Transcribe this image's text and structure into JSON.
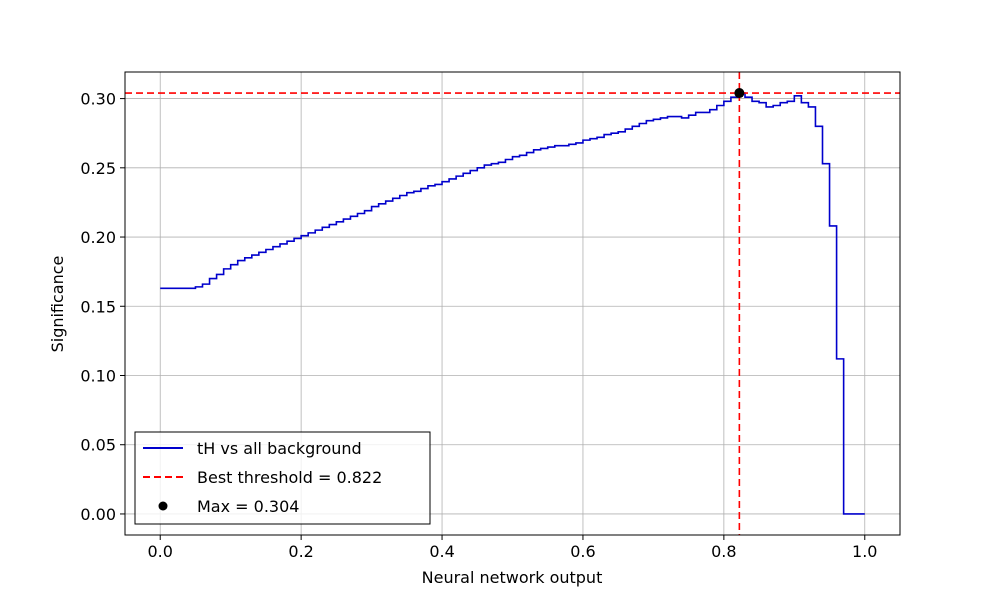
{
  "chart_data": {
    "type": "line",
    "title": "",
    "xlabel": "Neural network output",
    "ylabel": "Significance",
    "xlim": [
      -0.05,
      1.05
    ],
    "ylim": [
      -0.0152,
      0.3192
    ],
    "xticks": [
      0.0,
      0.2,
      0.4,
      0.6,
      0.8,
      1.0
    ],
    "xtick_labels": [
      "0.0",
      "0.2",
      "0.4",
      "0.6",
      "0.8",
      "1.0"
    ],
    "yticks": [
      0.0,
      0.05,
      0.1,
      0.15,
      0.2,
      0.25,
      0.3
    ],
    "ytick_labels": [
      "0.00",
      "0.05",
      "0.10",
      "0.15",
      "0.20",
      "0.25",
      "0.30"
    ],
    "grid": true,
    "legend_position": "bottom-left",
    "series": [
      {
        "name": "tH vs all background",
        "kind": "step",
        "color": "#0000cc",
        "x": [
          0.0,
          0.01,
          0.02,
          0.03,
          0.04,
          0.05,
          0.06,
          0.07,
          0.08,
          0.09,
          0.1,
          0.11,
          0.12,
          0.13,
          0.14,
          0.15,
          0.16,
          0.17,
          0.18,
          0.19,
          0.2,
          0.21,
          0.22,
          0.23,
          0.24,
          0.25,
          0.26,
          0.27,
          0.28,
          0.29,
          0.3,
          0.31,
          0.32,
          0.33,
          0.34,
          0.35,
          0.36,
          0.37,
          0.38,
          0.39,
          0.4,
          0.41,
          0.42,
          0.43,
          0.44,
          0.45,
          0.46,
          0.47,
          0.48,
          0.49,
          0.5,
          0.51,
          0.52,
          0.53,
          0.54,
          0.55,
          0.56,
          0.57,
          0.58,
          0.59,
          0.6,
          0.61,
          0.62,
          0.63,
          0.64,
          0.65,
          0.66,
          0.67,
          0.68,
          0.69,
          0.7,
          0.71,
          0.72,
          0.73,
          0.74,
          0.75,
          0.76,
          0.77,
          0.78,
          0.79,
          0.8,
          0.81,
          0.82,
          0.83,
          0.84,
          0.85,
          0.86,
          0.87,
          0.88,
          0.89,
          0.9,
          0.91,
          0.92,
          0.93,
          0.94,
          0.95,
          0.96,
          0.97,
          0.98,
          0.99,
          1.0
        ],
        "y": [
          0.163,
          0.163,
          0.163,
          0.163,
          0.163,
          0.164,
          0.166,
          0.17,
          0.173,
          0.177,
          0.18,
          0.183,
          0.185,
          0.187,
          0.189,
          0.191,
          0.193,
          0.195,
          0.197,
          0.199,
          0.201,
          0.203,
          0.205,
          0.207,
          0.209,
          0.211,
          0.213,
          0.215,
          0.217,
          0.219,
          0.222,
          0.224,
          0.226,
          0.228,
          0.23,
          0.232,
          0.233,
          0.235,
          0.237,
          0.238,
          0.24,
          0.242,
          0.244,
          0.246,
          0.248,
          0.25,
          0.252,
          0.253,
          0.254,
          0.256,
          0.258,
          0.259,
          0.261,
          0.263,
          0.264,
          0.265,
          0.266,
          0.266,
          0.267,
          0.268,
          0.27,
          0.271,
          0.272,
          0.274,
          0.275,
          0.276,
          0.278,
          0.28,
          0.282,
          0.284,
          0.285,
          0.286,
          0.287,
          0.287,
          0.286,
          0.288,
          0.29,
          0.29,
          0.292,
          0.295,
          0.298,
          0.301,
          0.304,
          0.301,
          0.298,
          0.297,
          0.294,
          0.295,
          0.297,
          0.298,
          0.302,
          0.297,
          0.294,
          0.28,
          0.253,
          0.208,
          0.112,
          0.0,
          0.0,
          0.0,
          0.0
        ]
      },
      {
        "name": "Best threshold = 0.822",
        "kind": "threshold",
        "color": "#ff0000",
        "x_value": 0.822,
        "y_value": 0.304
      },
      {
        "name": "Max = 0.304",
        "kind": "point",
        "color": "#000000",
        "x": 0.822,
        "y": 0.304
      }
    ]
  }
}
